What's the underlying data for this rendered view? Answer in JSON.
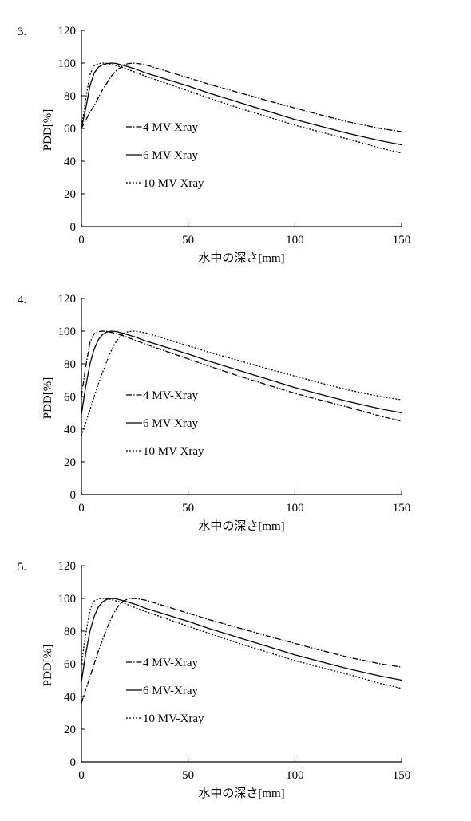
{
  "chart_data": [
    {
      "type": "line",
      "number": "3.",
      "xlabel": "水中の深さ[mm]",
      "ylabel": "PDD[%]",
      "xlim": [
        0,
        150
      ],
      "ylim": [
        0,
        120
      ],
      "xticks": [
        0,
        50,
        100,
        150
      ],
      "yticks": [
        0,
        20,
        40,
        60,
        80,
        100,
        120
      ],
      "legend_position": "left-center",
      "series": [
        {
          "name": "4 MV-Xray",
          "legend_style": "dashdot",
          "line_style": "dashdot",
          "x": [
            0,
            2,
            4,
            6,
            8,
            10,
            12,
            14,
            16,
            18,
            20,
            22,
            25,
            30,
            40,
            50,
            60,
            75,
            90,
            100,
            110,
            125,
            140,
            150
          ],
          "y": [
            60,
            65,
            70,
            74,
            79,
            84,
            88,
            92,
            95,
            97,
            99,
            99.7,
            100,
            99,
            95,
            91,
            87,
            81.5,
            76,
            72.5,
            69,
            64,
            60,
            58
          ]
        },
        {
          "name": "6 MV-Xray",
          "legend_style": "solid",
          "line_style": "solid",
          "x": [
            0,
            2,
            4,
            6,
            8,
            10,
            12,
            14,
            16,
            20,
            25,
            30,
            40,
            50,
            60,
            75,
            90,
            100,
            110,
            125,
            140,
            150
          ],
          "y": [
            60,
            72,
            86,
            94,
            97.5,
            99,
            99.7,
            100,
            99.8,
            98.5,
            96.5,
            94,
            90,
            86,
            81.5,
            75.5,
            69.5,
            65.5,
            62,
            57,
            52.5,
            50
          ]
        },
        {
          "name": "10 MV-Xray",
          "legend_style": "dotted",
          "line_style": "dotted",
          "x": [
            0,
            2,
            4,
            6,
            8,
            10,
            12,
            15,
            20,
            25,
            30,
            40,
            50,
            60,
            75,
            90,
            100,
            110,
            125,
            140,
            150
          ],
          "y": [
            60,
            78,
            93,
            98.5,
            99.7,
            100,
            99.8,
            99,
            97,
            94.5,
            92,
            87.5,
            83,
            78.5,
            72,
            66,
            62,
            58.5,
            53.5,
            48,
            45
          ]
        }
      ]
    },
    {
      "type": "line",
      "number": "4.",
      "xlabel": "水中の深さ[mm]",
      "ylabel": "PDD[%]",
      "xlim": [
        0,
        150
      ],
      "ylim": [
        0,
        120
      ],
      "xticks": [
        0,
        50,
        100,
        150
      ],
      "yticks": [
        0,
        20,
        40,
        60,
        80,
        100,
        120
      ],
      "legend_position": "left-center",
      "series": [
        {
          "name": "4 MV-Xray",
          "legend_style": "dashdot",
          "line_style": "dashdot",
          "x": [
            0,
            2,
            4,
            6,
            8,
            10,
            12,
            15,
            20,
            25,
            30,
            40,
            50,
            60,
            75,
            90,
            100,
            110,
            125,
            140,
            150
          ],
          "y": [
            60,
            78,
            93,
            98.5,
            99.7,
            100,
            99.8,
            99,
            97,
            94.5,
            92,
            87.5,
            83,
            78.5,
            72,
            66,
            62,
            58.5,
            53.5,
            48,
            45
          ]
        },
        {
          "name": "6 MV-Xray",
          "legend_style": "solid",
          "line_style": "solid",
          "x": [
            0,
            2,
            4,
            6,
            8,
            10,
            12,
            14,
            16,
            20,
            25,
            30,
            40,
            50,
            60,
            75,
            90,
            100,
            110,
            125,
            140,
            150
          ],
          "y": [
            49,
            66,
            80,
            89,
            95,
            98,
            99.5,
            100,
            99.8,
            98.5,
            96.5,
            94,
            90,
            86,
            81.5,
            75.5,
            69.5,
            65.5,
            62,
            57,
            52.5,
            50
          ]
        },
        {
          "name": "10 MV-Xray",
          "legend_style": "dotted",
          "line_style": "dotted",
          "x": [
            0,
            2,
            4,
            6,
            8,
            10,
            12,
            14,
            16,
            18,
            20,
            22,
            25,
            30,
            40,
            50,
            60,
            75,
            90,
            100,
            110,
            125,
            140,
            150
          ],
          "y": [
            36,
            44,
            52,
            60,
            68,
            75,
            82,
            88,
            93,
            96.5,
            98.7,
            99.7,
            100,
            99,
            95,
            91,
            87,
            81.5,
            76,
            72.5,
            69,
            64,
            60,
            58
          ]
        }
      ]
    },
    {
      "type": "line",
      "number": "5.",
      "xlabel": "水中の深さ[mm]",
      "ylabel": "PDD[%]",
      "xlim": [
        0,
        150
      ],
      "ylim": [
        0,
        120
      ],
      "xticks": [
        0,
        50,
        100,
        150
      ],
      "yticks": [
        0,
        20,
        40,
        60,
        80,
        100,
        120
      ],
      "legend_position": "left-center",
      "series": [
        {
          "name": "4 MV-Xray",
          "legend_style": "dashdot",
          "line_style": "dashdot",
          "x": [
            0,
            2,
            4,
            6,
            8,
            10,
            12,
            14,
            16,
            18,
            20,
            22,
            25,
            30,
            40,
            50,
            60,
            75,
            90,
            100,
            110,
            125,
            140,
            150
          ],
          "y": [
            36,
            44,
            52,
            60,
            68,
            75,
            82,
            88,
            93,
            96.5,
            98.7,
            99.7,
            100,
            99,
            95,
            91,
            87,
            81.5,
            76,
            72.5,
            69,
            64,
            60,
            58
          ]
        },
        {
          "name": "6 MV-Xray",
          "legend_style": "solid",
          "line_style": "solid",
          "x": [
            0,
            2,
            4,
            6,
            8,
            10,
            12,
            14,
            16,
            20,
            25,
            30,
            40,
            50,
            60,
            75,
            90,
            100,
            110,
            125,
            140,
            150
          ],
          "y": [
            49,
            66,
            80,
            89,
            95,
            98,
            99.5,
            100,
            99.8,
            98.5,
            96.5,
            94,
            90,
            86,
            81.5,
            75.5,
            69.5,
            65.5,
            62,
            57,
            52.5,
            50
          ]
        },
        {
          "name": "10 MV-Xray",
          "legend_style": "dotted",
          "line_style": "dotted",
          "x": [
            0,
            2,
            4,
            6,
            8,
            10,
            12,
            15,
            20,
            25,
            30,
            40,
            50,
            60,
            75,
            90,
            100,
            110,
            125,
            140,
            150
          ],
          "y": [
            60,
            78,
            93,
            98.5,
            99.7,
            100,
            99.8,
            99,
            97,
            94.5,
            92,
            87.5,
            83,
            78.5,
            72,
            66,
            62,
            58.5,
            53.5,
            48,
            45
          ]
        }
      ]
    }
  ]
}
